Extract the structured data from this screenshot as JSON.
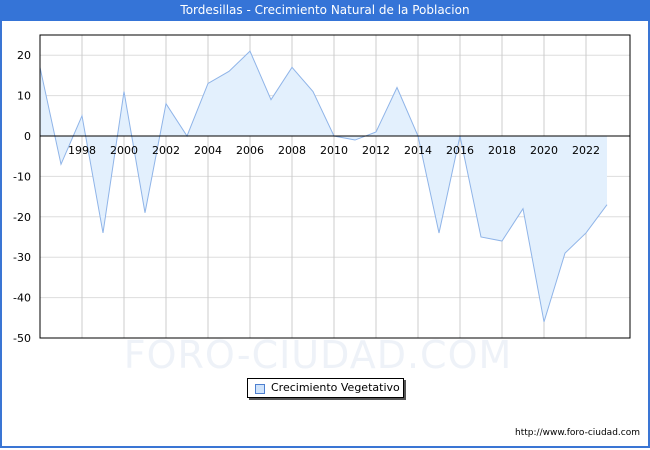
{
  "window": {
    "title": "Tordesillas - Crecimiento Natural de la Poblacion",
    "title_bar_color": "#3574d7"
  },
  "watermark": "FORO-CIUDAD.COM",
  "footer": {
    "url": "http://www.foro-ciudad.com"
  },
  "legend": {
    "label": "Crecimiento Vegetativo",
    "swatch_color": "#cfe3fb"
  },
  "chart_data": {
    "type": "area",
    "title": "Tordesillas - Crecimiento Natural de la Poblacion",
    "xlabel": "",
    "ylabel": "",
    "ylim": [
      -50,
      25
    ],
    "yticks": [
      20,
      10,
      0,
      -10,
      -20,
      -30,
      -40,
      -50
    ],
    "xticks": [
      1998,
      2000,
      2002,
      2004,
      2006,
      2008,
      2010,
      2012,
      2014,
      2016,
      2018,
      2020,
      2022
    ],
    "grid": true,
    "legend_position": "bottom-center",
    "x": [
      1996,
      1997,
      1998,
      1999,
      2000,
      2001,
      2002,
      2003,
      2004,
      2005,
      2006,
      2007,
      2008,
      2009,
      2010,
      2011,
      2012,
      2013,
      2014,
      2015,
      2016,
      2017,
      2018,
      2019,
      2020,
      2021,
      2022,
      2023
    ],
    "series": [
      {
        "name": "Crecimiento Vegetativo",
        "values": [
          17,
          -7,
          5,
          -24,
          11,
          -19,
          8,
          0,
          13,
          16,
          21,
          9,
          17,
          11,
          0,
          -1,
          1,
          12,
          0,
          -24,
          0,
          -25,
          -26,
          -18,
          -46,
          -29,
          -24,
          -17
        ],
        "line_color": "#8fb4e8",
        "fill_color": "#e3f0fd"
      }
    ]
  }
}
